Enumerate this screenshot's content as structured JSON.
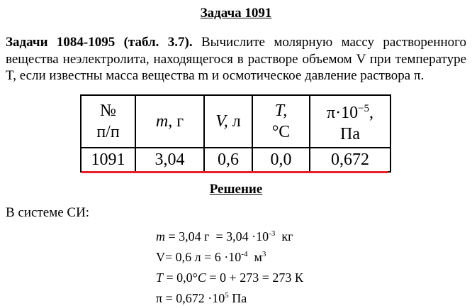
{
  "title": "Задача 1091",
  "problem": {
    "bold": "Задачи 1084-1095 (табл. 3.7).",
    "text": " Вычислите молярную массу растворенного вещества неэлектролита, находящегося в растворе объемом V при температуре T, если известны масса вещества m и осмотическое давление раствора π."
  },
  "table": {
    "headers": [
      {
        "l1": "№",
        "l2": "п/п"
      },
      {
        "l1": "m, г",
        "l2": ""
      },
      {
        "l1": "V, л",
        "l2": ""
      },
      {
        "l1": "T,",
        "l2": "°C"
      },
      {
        "l1": "π·10",
        "sup": "−5",
        "tail": ",",
        "l2": "Па"
      }
    ],
    "row": [
      "1091",
      "3,04",
      "0,6",
      "0,0",
      "0,672"
    ]
  },
  "solution_heading": "Решение",
  "si_label": "В системе СИ:",
  "formulas": {
    "m": {
      "a": "m",
      "b": " = 3,04 г  = 3,04 ·10",
      "sup": "-3",
      "c": "  кг"
    },
    "v": {
      "a": "V= 0,6 л = 6 ·10",
      "sup": "-4",
      "c": "  м",
      "sup2": "3"
    },
    "t": {
      "a": "T",
      "b": " = 0,0°",
      "c": "C",
      "d": " = 0 + 273 = 273 К"
    },
    "p": {
      "a": "π = 0,672 ·10",
      "sup": "5",
      "c": " Па"
    }
  },
  "accent_color": "#e8202a"
}
